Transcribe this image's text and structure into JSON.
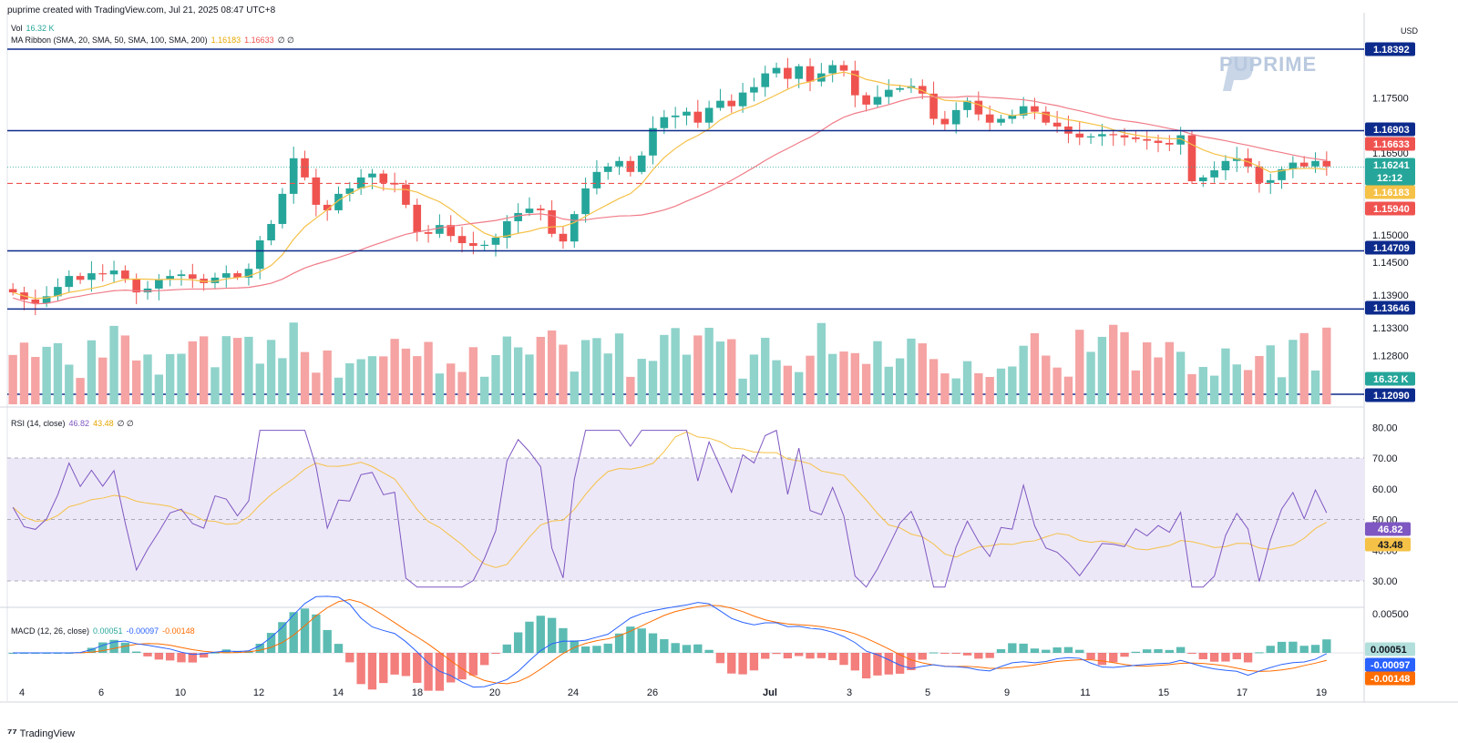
{
  "header": {
    "credit": "puprime created with TradingView.com, Jul 21, 2025 08:47 UTC+8",
    "currency": "USD"
  },
  "legend": {
    "vol_label": "Vol",
    "vol_value": "16.32 K",
    "ma_label": "MA Ribbon (SMA, 20, SMA, 50, SMA, 100, SMA, 200)",
    "ma_val1": "1.16183",
    "ma_val2": "1.16633",
    "ma_null": "∅ ∅",
    "rsi_label": "RSI (14, close)",
    "rsi_val1": "46.82",
    "rsi_val2": "43.48",
    "rsi_null": "∅ ∅",
    "macd_label": "MACD (12, 26, close)",
    "macd_val1": "0.00051",
    "macd_val2": "-0.00097",
    "macd_val3": "-0.00148"
  },
  "watermark": "PUPRIME",
  "footer": "TradingView",
  "colors": {
    "up": "#26a69a",
    "down": "#ef5350",
    "hline": "#0d2b8c",
    "sma20": "#f5c147",
    "sma50": "#f07b87",
    "rsi": "#7e57c2",
    "macd": "#2962ff",
    "signal": "#ff6d00"
  },
  "chart_data": {
    "type": "candlestick",
    "symbol_currency": "USD",
    "x_labels": [
      "4",
      "6",
      "10",
      "12",
      "14",
      "18",
      "20",
      "24",
      "26",
      "Jul",
      "3",
      "5",
      "9",
      "11",
      "15",
      "17",
      "19"
    ],
    "price_axis_ticks": [
      "1.17500",
      "1.16500",
      "1.15000",
      "1.14500",
      "1.13900",
      "1.13300",
      "1.12800"
    ],
    "price_tags": [
      {
        "label": "1.18392",
        "value": 1.18392,
        "color": "#0d2b8c"
      },
      {
        "label": "1.16903",
        "value": 1.16903,
        "color": "#0d2b8c"
      },
      {
        "label": "1.16633",
        "value": 1.16633,
        "color": "#ef5350"
      },
      {
        "label": "1.16241",
        "sublabel": "12:12",
        "value": 1.16241,
        "color": "#26a69a"
      },
      {
        "label": "1.16183",
        "value": 1.16183,
        "color": "#f5c147"
      },
      {
        "label": "1.15940",
        "value": 1.1594,
        "color": "#ef5350"
      },
      {
        "label": "1.14709",
        "value": 1.14709,
        "color": "#0d2b8c"
      },
      {
        "label": "1.13646",
        "value": 1.13646,
        "color": "#0d2b8c"
      },
      {
        "label": "1.12090",
        "value": 1.1209,
        "color": "#0d2b8c"
      },
      {
        "label": "16.32 K",
        "value": null,
        "color": "#26a69a"
      }
    ],
    "horizontal_lines": [
      1.18392,
      1.16903,
      1.14709,
      1.13646,
      1.1209
    ],
    "dashed_support": 1.1594,
    "close_path": [
      1.1395,
      1.1382,
      1.1375,
      1.1388,
      1.1405,
      1.1425,
      1.1418,
      1.143,
      1.1428,
      1.1435,
      1.142,
      1.1395,
      1.1402,
      1.1418,
      1.1425,
      1.1428,
      1.142,
      1.1412,
      1.1422,
      1.143,
      1.1422,
      1.1438,
      1.149,
      1.152,
      1.1575,
      1.164,
      1.1605,
      1.1555,
      1.1545,
      1.1575,
      1.1585,
      1.1605,
      1.1612,
      1.1595,
      1.1592,
      1.1555,
      1.1505,
      1.1502,
      1.1518,
      1.1498,
      1.1485,
      1.148,
      1.1482,
      1.1495,
      1.1525,
      1.154,
      1.1548,
      1.1545,
      1.1502,
      1.1488,
      1.1538,
      1.1585,
      1.1615,
      1.1625,
      1.1635,
      1.1615,
      1.1645,
      1.1695,
      1.1715,
      1.1718,
      1.1725,
      1.1705,
      1.1732,
      1.1745,
      1.1735,
      1.176,
      1.177,
      1.1795,
      1.1805,
      1.1785,
      1.1808,
      1.178,
      1.1795,
      1.181,
      1.18,
      1.1755,
      1.1738,
      1.1752,
      1.1765,
      1.1768,
      1.1772,
      1.1758,
      1.1712,
      1.1702,
      1.1728,
      1.1745,
      1.172,
      1.1705,
      1.1712,
      1.1718,
      1.1735,
      1.1725,
      1.1705,
      1.1698,
      1.1685,
      1.1678,
      1.168,
      1.1684,
      1.1682,
      1.1678,
      1.1675,
      1.1672,
      1.1668,
      1.1665,
      1.1682,
      1.1598,
      1.1605,
      1.1618,
      1.1635,
      1.164,
      1.1625,
      1.1595,
      1.16,
      1.162,
      1.1632,
      1.1625,
      1.1635,
      1.1625
    ],
    "ma_ribbon": {
      "sma20_last": 1.16183,
      "sma50_last": 1.16633
    },
    "rsi": {
      "axis_ticks": [
        80,
        70,
        60,
        50,
        40,
        30
      ],
      "overbought": 70,
      "oversold": 30,
      "last_rsi": 46.82,
      "last_ma": 43.48
    },
    "macd": {
      "axis_ticks": [
        "0.00500"
      ],
      "last_hist": 0.00051,
      "last_macd": -0.00097,
      "last_signal": -0.00148
    }
  }
}
